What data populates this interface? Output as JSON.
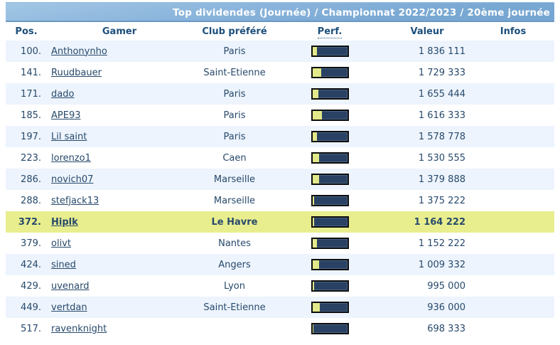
{
  "title_bar": {
    "text": "Top dividendes (Journée) / Championnat 2022/2023 / 20ème journée"
  },
  "colors": {
    "title_bar_blue": "#79a8d3",
    "header_text": "#1d4f7c",
    "cell_text": "#27496b",
    "row_alt_blue": "#edf4fd",
    "highlight_row": "#e8ee8e",
    "perf_bar_bg": "#294263",
    "perf_bar_border": "#0d0d0d",
    "perf_bar_fill": "#e2e98a"
  },
  "table": {
    "headers": {
      "pos": "Pos.",
      "gamer": "Gamer",
      "club": "Club préféré",
      "perf": "Perf.",
      "valeur": "Valeur",
      "infos": "Infos"
    },
    "rows": [
      {
        "pos": "100.",
        "gamer": "Anthonynho",
        "club": "Paris",
        "perf_pct": 13,
        "valeur": "1 836 111",
        "infos": "",
        "highlight": false
      },
      {
        "pos": "141.",
        "gamer": "Ruudbauer",
        "club": "Saint-Etienne",
        "perf_pct": 25,
        "valeur": "1 729 333",
        "infos": "",
        "highlight": false
      },
      {
        "pos": "171.",
        "gamer": "dado",
        "club": "Paris",
        "perf_pct": 18,
        "valeur": "1 655 444",
        "infos": "",
        "highlight": false
      },
      {
        "pos": "185.",
        "gamer": "APE93",
        "club": "Paris",
        "perf_pct": 28,
        "valeur": "1 616 333",
        "infos": "",
        "highlight": false
      },
      {
        "pos": "197.",
        "gamer": "Lil saint",
        "club": "Paris",
        "perf_pct": 13,
        "valeur": "1 578 778",
        "infos": "",
        "highlight": false
      },
      {
        "pos": "223.",
        "gamer": "lorenzo1",
        "club": "Caen",
        "perf_pct": 20,
        "valeur": "1 530 555",
        "infos": "",
        "highlight": false
      },
      {
        "pos": "286.",
        "gamer": "novich07",
        "club": "Marseille",
        "perf_pct": 20,
        "valeur": "1 379 888",
        "infos": "",
        "highlight": false
      },
      {
        "pos": "288.",
        "gamer": "stefjack13",
        "club": "Marseille",
        "perf_pct": 5,
        "valeur": "1 375 222",
        "infos": "",
        "highlight": false
      },
      {
        "pos": "372.",
        "gamer": "Hiplk",
        "club": "Le Havre",
        "perf_pct": 5,
        "valeur": "1 164 222",
        "infos": "",
        "highlight": true
      },
      {
        "pos": "379.",
        "gamer": "olivt",
        "club": "Nantes",
        "perf_pct": 13,
        "valeur": "1 152 222",
        "infos": "",
        "highlight": false
      },
      {
        "pos": "424.",
        "gamer": "sined",
        "club": "Angers",
        "perf_pct": 20,
        "valeur": "1 009 332",
        "infos": "",
        "highlight": false
      },
      {
        "pos": "429.",
        "gamer": "uvenard",
        "club": "Lyon",
        "perf_pct": 5,
        "valeur": "995 000",
        "infos": "",
        "highlight": false
      },
      {
        "pos": "449.",
        "gamer": "vertdan",
        "club": "Saint-Etienne",
        "perf_pct": 22,
        "valeur": "936 000",
        "infos": "",
        "highlight": false
      },
      {
        "pos": "517.",
        "gamer": "ravenknight",
        "club": "",
        "perf_pct": 4,
        "valeur": "698 333",
        "infos": "",
        "highlight": false
      }
    ]
  }
}
